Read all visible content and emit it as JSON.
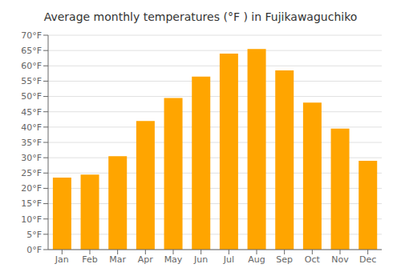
{
  "chart_data": {
    "type": "bar",
    "title": "Average monthly temperatures (°F ) in Fujikawaguchiko",
    "categories": [
      "Jan",
      "Feb",
      "Mar",
      "Apr",
      "May",
      "Jun",
      "Jul",
      "Aug",
      "Sep",
      "Oct",
      "Nov",
      "Dec"
    ],
    "values": [
      23.5,
      24.5,
      30.5,
      42.0,
      49.5,
      56.5,
      64.0,
      65.5,
      58.5,
      48.0,
      39.5,
      29.0
    ],
    "color": "#FFA500",
    "ylim": [
      0,
      70
    ],
    "yticks": [
      {
        "value": 0,
        "label": "0°F"
      },
      {
        "value": 5,
        "label": "5°F"
      },
      {
        "value": 10,
        "label": "10°F"
      },
      {
        "value": 15,
        "label": "15°F"
      },
      {
        "value": 20,
        "label": "20°F"
      },
      {
        "value": 25,
        "label": "25°F"
      },
      {
        "value": 30,
        "label": "30°F"
      },
      {
        "value": 35,
        "label": "35°F"
      },
      {
        "value": 40,
        "label": "40°F"
      },
      {
        "value": 45,
        "label": "45°F"
      },
      {
        "value": 50,
        "label": "50°F"
      },
      {
        "value": 55,
        "label": "55°F"
      },
      {
        "value": 60,
        "label": "60°F"
      },
      {
        "value": 65,
        "label": "65°F"
      },
      {
        "value": 70,
        "label": "70°F"
      }
    ],
    "grid": true
  }
}
